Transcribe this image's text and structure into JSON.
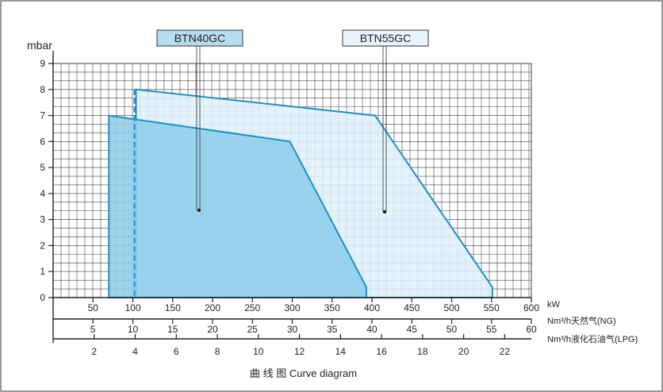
{
  "chart_data": {
    "type": "area",
    "ylabel": "mbar",
    "y_ticks": [
      "0",
      "1",
      "2",
      "3",
      "4",
      "5",
      "6",
      "7",
      "8",
      "9"
    ],
    "ylim": [
      0,
      9
    ],
    "xlim": [
      0,
      600
    ],
    "axes": [
      {
        "unit": "kW",
        "range": [
          0,
          600
        ],
        "ticks": [
          "50",
          "100",
          "150",
          "200",
          "250",
          "300",
          "350",
          "400",
          "450",
          "500",
          "550",
          "600"
        ],
        "tick_values": [
          50,
          100,
          150,
          200,
          250,
          300,
          350,
          400,
          450,
          500,
          550,
          600
        ]
      },
      {
        "unit": "Nm³/h天然气(NG)",
        "range": [
          0,
          60
        ],
        "ticks": [
          "5",
          "10",
          "15",
          "20",
          "25",
          "30",
          "35",
          "40",
          "45",
          "50",
          "55",
          "60"
        ],
        "tick_values": [
          5,
          10,
          15,
          20,
          25,
          30,
          35,
          40,
          45,
          50,
          55,
          60
        ]
      },
      {
        "unit": "Nm³/h液化石油气(LPG)",
        "range": [
          0,
          23.3
        ],
        "ticks": [
          "2",
          "4",
          "6",
          "8",
          "10",
          "12",
          "14",
          "16",
          "18",
          "20",
          "22"
        ],
        "tick_values": [
          2,
          4,
          6,
          8,
          10,
          12,
          14,
          16,
          18,
          20,
          22
        ]
      }
    ],
    "series": [
      {
        "name": "BTN55GC",
        "color": "#dff0fa",
        "stroke": "#1f8fc9",
        "x": [
          104,
          104,
          404,
          551,
          551
        ],
        "y": [
          0,
          8,
          7,
          0.4,
          0
        ]
      },
      {
        "name": "BTN40GC",
        "color": "#8dcdea",
        "stroke": "#1f8fc9",
        "x": [
          70,
          70,
          297,
          393,
          393
        ],
        "y": [
          0,
          7,
          6,
          0.4,
          0
        ]
      }
    ],
    "grid": true,
    "caption": "曲 线 图 Curve diagram"
  },
  "colors": {
    "frame": "#555555",
    "grid": "#444444",
    "label_box": "#b7dcf0",
    "accent": "#1f8fc9"
  }
}
